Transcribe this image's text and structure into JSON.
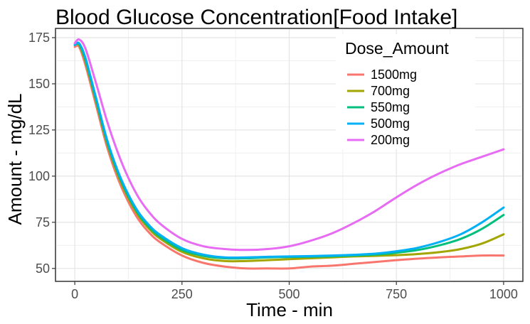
{
  "chart_data": {
    "type": "line",
    "title": "Blood Glucose Concentration[Food Intake]",
    "xlabel": "Time - min",
    "ylabel": "Amount - mg/dL",
    "xlim": [
      -45,
      1045
    ],
    "ylim": [
      43,
      180
    ],
    "xticks": [
      0,
      250,
      500,
      750,
      1000
    ],
    "yticks": [
      50,
      75,
      100,
      125,
      150,
      175
    ],
    "grid": true,
    "legend": {
      "title": "Dose_Amount",
      "position": "top-right"
    },
    "series": [
      {
        "name": "1500mg",
        "color": "#F8766D",
        "x": [
          0,
          10,
          25,
          50,
          75,
          100,
          125,
          150,
          175,
          200,
          250,
          300,
          350,
          400,
          450,
          500,
          550,
          600,
          650,
          700,
          750,
          800,
          850,
          900,
          950,
          1000
        ],
        "y": [
          170,
          170,
          160,
          138,
          116,
          99,
          86,
          76,
          69,
          64,
          57,
          53,
          51,
          50,
          50,
          50,
          51,
          51.5,
          52.5,
          53.5,
          54.5,
          55.3,
          56,
          56.5,
          57,
          57
        ]
      },
      {
        "name": "700mg",
        "color": "#A3A500",
        "x": [
          0,
          10,
          25,
          50,
          75,
          100,
          125,
          150,
          175,
          200,
          250,
          300,
          350,
          400,
          450,
          500,
          550,
          600,
          650,
          700,
          750,
          800,
          850,
          900,
          950,
          1000
        ],
        "y": [
          171,
          171,
          162,
          140,
          118,
          101,
          88,
          78,
          71,
          66,
          59,
          55.5,
          54,
          54,
          54.5,
          55,
          55.5,
          56,
          56.5,
          56.8,
          57.2,
          57.8,
          58.8,
          60.5,
          63.5,
          68.5
        ]
      },
      {
        "name": "550mg",
        "color": "#00BF7D",
        "x": [
          0,
          10,
          25,
          50,
          75,
          100,
          125,
          150,
          175,
          200,
          250,
          300,
          350,
          400,
          450,
          500,
          550,
          600,
          650,
          700,
          750,
          800,
          850,
          900,
          950,
          1000
        ],
        "y": [
          171,
          171.5,
          163,
          141,
          119,
          102,
          89,
          79,
          72,
          67,
          60,
          56.8,
          55.5,
          55.5,
          56,
          56.2,
          56.4,
          56.6,
          57,
          57.5,
          58.5,
          60,
          62.5,
          66,
          71.5,
          79
        ]
      },
      {
        "name": "500mg",
        "color": "#00B0F6",
        "x": [
          0,
          10,
          25,
          50,
          75,
          100,
          125,
          150,
          175,
          200,
          250,
          300,
          350,
          400,
          450,
          500,
          550,
          600,
          650,
          700,
          750,
          800,
          850,
          900,
          950,
          1000
        ],
        "y": [
          171,
          172,
          164,
          142,
          120,
          103,
          90,
          80,
          73,
          68,
          61,
          57.5,
          56,
          56,
          56.3,
          56.5,
          56.7,
          57,
          57.4,
          58,
          59.3,
          61.2,
          64.3,
          68.5,
          75,
          83
        ]
      },
      {
        "name": "200mg",
        "color": "#E76BF3",
        "x": [
          0,
          10,
          25,
          50,
          75,
          100,
          125,
          150,
          175,
          200,
          250,
          300,
          350,
          400,
          450,
          500,
          550,
          600,
          650,
          700,
          750,
          800,
          850,
          900,
          950,
          1000
        ],
        "y": [
          172,
          174,
          169,
          150,
          130,
          113,
          99,
          88,
          80,
          74,
          66,
          62,
          60.5,
          60,
          60.5,
          62,
          65,
          69,
          74.5,
          81,
          88.5,
          95.5,
          101.5,
          106.5,
          110.5,
          114.5
        ]
      }
    ]
  }
}
